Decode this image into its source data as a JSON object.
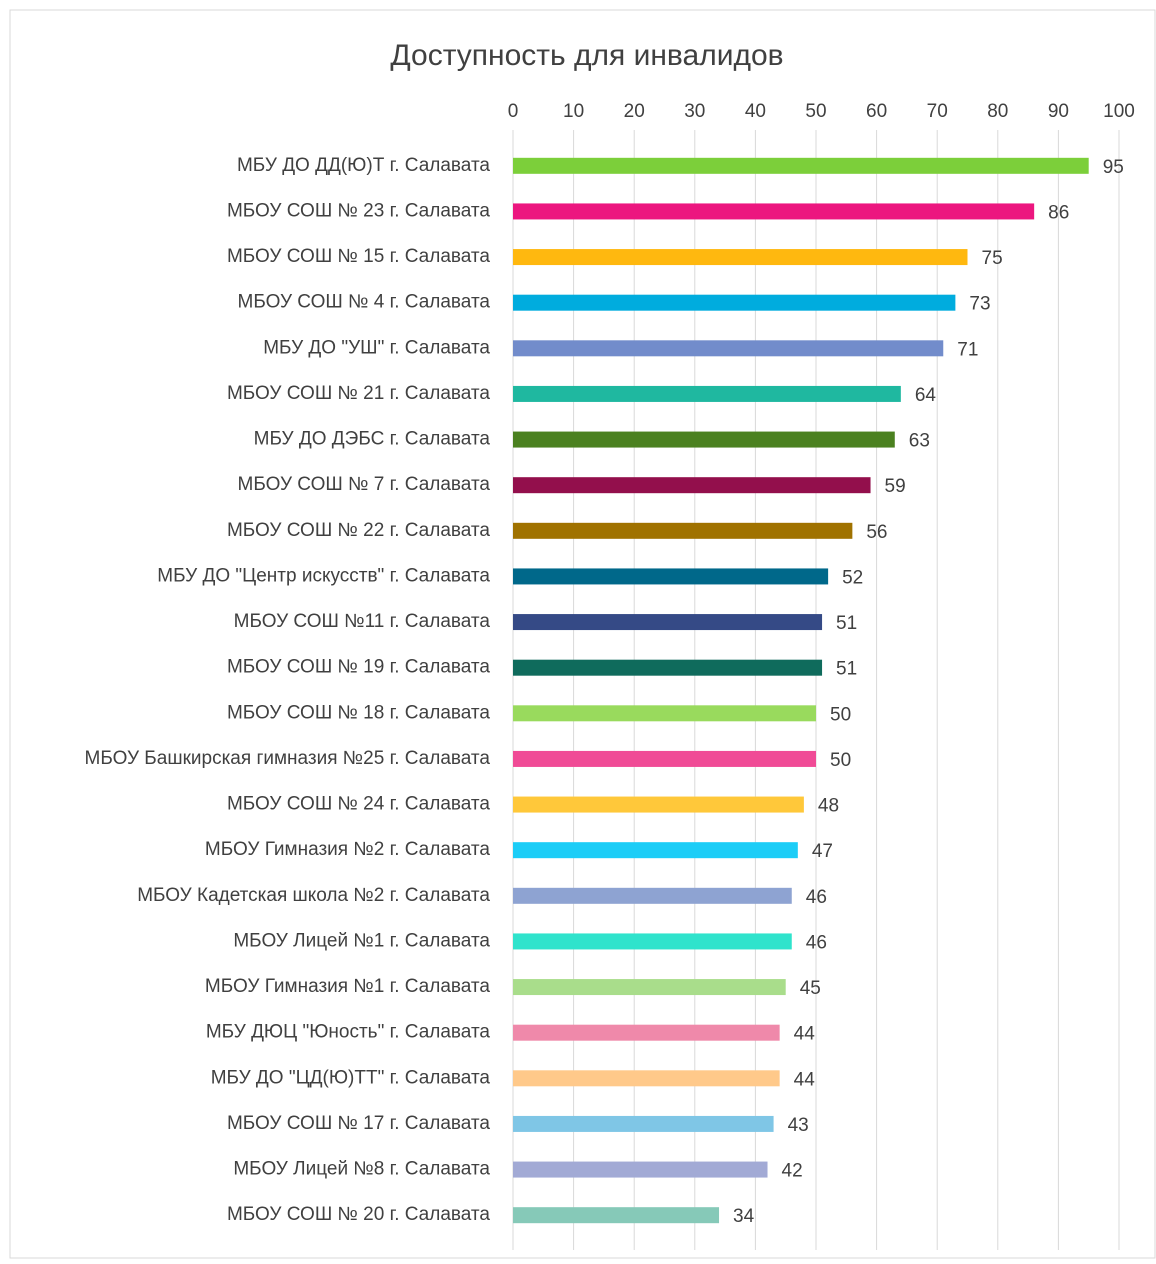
{
  "chart_data": {
    "type": "bar",
    "title": "Доступность для инвалидов",
    "categories": [
      "МБУ ДО ДД(Ю)Т г. Салавата",
      "МБОУ СОШ № 23 г. Салавата",
      "МБОУ СОШ № 15 г. Салавата",
      "МБОУ СОШ № 4 г. Салавата",
      "МБУ ДО \"УШ\" г. Салавата",
      "МБОУ СОШ № 21 г. Салавата",
      "МБУ ДО ДЭБС г. Салавата",
      "МБОУ СОШ № 7 г. Салавата",
      "МБОУ СОШ № 22 г. Салавата",
      "МБУ ДО \"Центр искусств\" г. Салавата",
      "МБОУ СОШ №11 г. Салавата",
      "МБОУ СОШ № 19 г. Салавата",
      "МБОУ СОШ № 18 г. Салавата",
      "МБОУ Башкирская гимназия №25 г. Салавата",
      "МБОУ СОШ № 24 г. Салавата",
      "МБОУ Гимназия №2 г. Салавата",
      "МБОУ Кадетская школа №2 г. Салавата",
      "МБОУ Лицей №1 г. Салавата",
      "МБОУ Гимназия №1 г. Салавата",
      "МБУ ДЮЦ \"Юность\" г. Салавата",
      "МБУ ДО \"ЦД(Ю)ТТ\" г. Салавата",
      "МБОУ СОШ № 17 г. Салавата",
      "МБОУ Лицей №8 г. Салавата",
      "МБОУ СОШ № 20 г. Салавата"
    ],
    "values": [
      95,
      86,
      75,
      73,
      71,
      64,
      63,
      59,
      56,
      52,
      51,
      51,
      50,
      50,
      48,
      47,
      46,
      46,
      45,
      44,
      44,
      43,
      42,
      34
    ],
    "colors": [
      "#7ccf3a",
      "#ec167f",
      "#ffb80f",
      "#00acde",
      "#728ccb",
      "#1fb8a0",
      "#4b8120",
      "#930f4c",
      "#a07200",
      "#00688a",
      "#354a86",
      "#0f6b5c",
      "#99da5d",
      "#f04b96",
      "#ffc83a",
      "#1ccdf7",
      "#8ea3d2",
      "#2fe3cc",
      "#a9dd8b",
      "#ef89aa",
      "#ffc98a",
      "#7fc6e6",
      "#a2aad5",
      "#86c9b8"
    ],
    "xlim": [
      0,
      100
    ],
    "xticks": [
      0,
      10,
      20,
      30,
      40,
      50,
      60,
      70,
      80,
      90,
      100
    ],
    "grid": true
  }
}
